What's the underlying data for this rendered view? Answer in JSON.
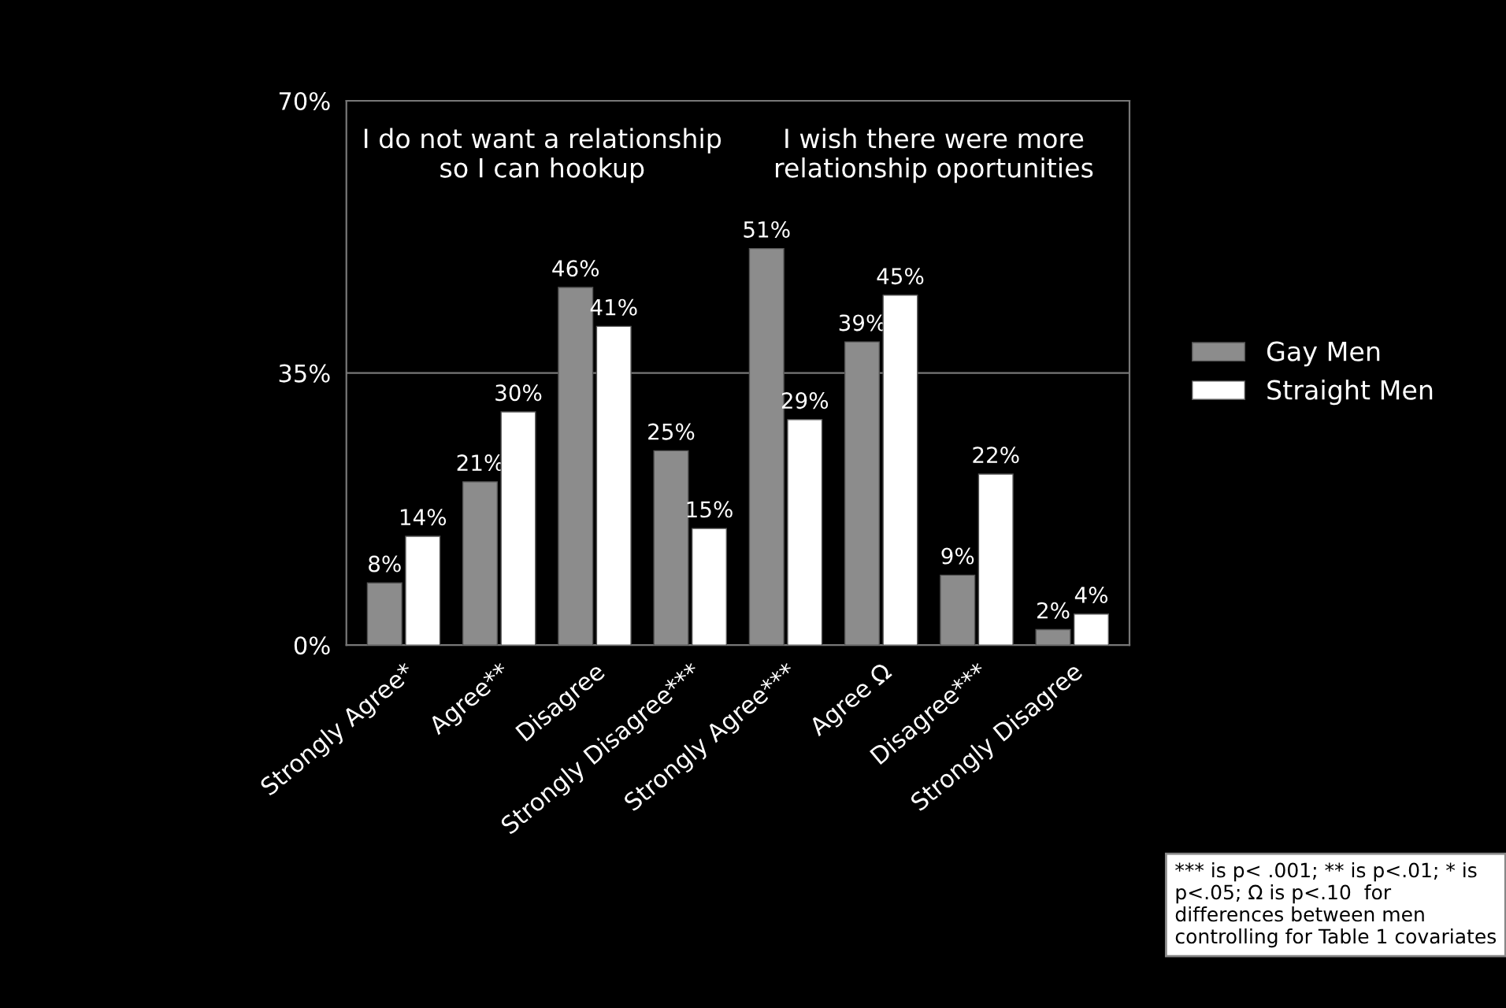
{
  "chart_data": {
    "type": "bar",
    "categories": [
      "Strongly Agree*",
      "Agree**",
      "Disagree",
      "Strongly Disagree***",
      "Strongly Agree***",
      "Agree Ω",
      "Disagree***",
      "Strongly Disagree"
    ],
    "series": [
      {
        "name": "Gay Men",
        "color": "#8c8c8c",
        "values": [
          8,
          21,
          46,
          25,
          51,
          39,
          9,
          2
        ],
        "value_labels": [
          "8%",
          "21%",
          "46%",
          "25%",
          "51%",
          "39%",
          "9%",
          "2%"
        ]
      },
      {
        "name": "Straight Men",
        "color": "#ffffff",
        "values": [
          14,
          30,
          41,
          15,
          29,
          45,
          22,
          4
        ],
        "value_labels": [
          "14%",
          "30%",
          "41%",
          "15%",
          "29%",
          "45%",
          "22%",
          "4%"
        ]
      }
    ],
    "ylim": [
      0,
      70
    ],
    "yticks": [
      {
        "value": 0,
        "label": "0%"
      },
      {
        "value": 35,
        "label": "35%"
      },
      {
        "value": 70,
        "label": "70%"
      }
    ],
    "grid": "y",
    "legend": "right",
    "annotations": [
      "I do not want a relationship\nso I can hookup",
      "I wish there were more\nrelationship oportunities",
      "*** is p< .001; ** is p<.01; * is p<.05; Ω is p<.10  for differences between men controlling for Table 1 covariates"
    ]
  }
}
